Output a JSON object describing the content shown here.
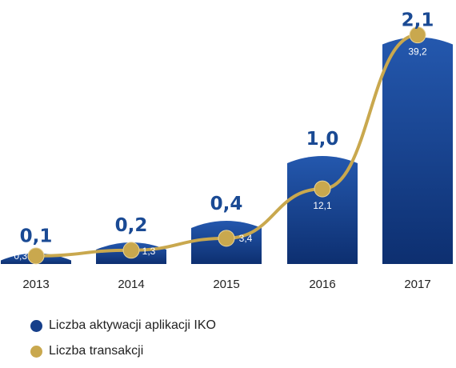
{
  "chart_data": {
    "type": "bar",
    "categories": [
      "2013",
      "2014",
      "2015",
      "2016",
      "2017"
    ],
    "series": [
      {
        "name": "Liczba aktywacji aplikacji IKO",
        "type": "bar",
        "values": [
          0.1,
          0.2,
          0.4,
          1.0,
          2.1
        ],
        "labels": [
          "0,1",
          "0,2",
          "0,4",
          "1,0",
          "2,1"
        ],
        "color": "#163f8a"
      },
      {
        "name": "Liczba transakcji",
        "type": "line",
        "values": [
          0.3,
          1.3,
          3.4,
          12.1,
          39.2
        ],
        "labels": [
          "0,3",
          "1,3",
          "3,4",
          "12,1",
          "39,2"
        ],
        "color": "#c9a84e"
      }
    ],
    "grid": false,
    "legend_placement": "bottom-left"
  },
  "legend": {
    "items": [
      {
        "label": "Liczba aktywacji aplikacji IKO",
        "color": "#163f8a"
      },
      {
        "label": "Liczba transakcji",
        "color": "#c9a84e"
      }
    ]
  }
}
